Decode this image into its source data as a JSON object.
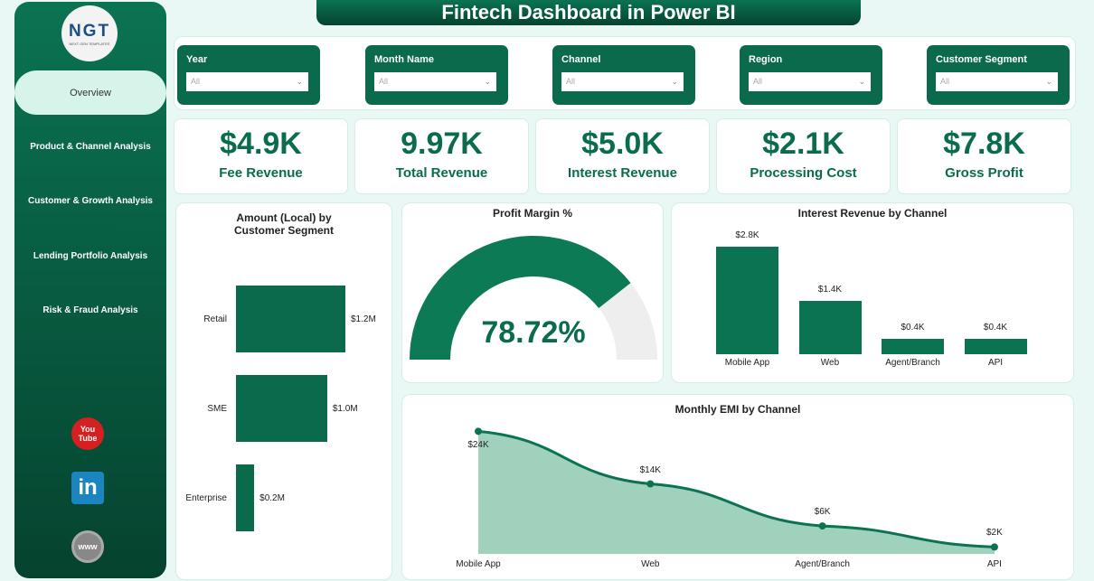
{
  "title": "Fintech Dashboard in Power BI",
  "logo": {
    "text": "NGT",
    "sub": "NEXT GEN TEMPLATES"
  },
  "nav": [
    "Overview",
    "Product & Channel Analysis",
    "Customer & Growth Analysis",
    "Lending Portfolio Analysis",
    "Risk & Fraud Analysis"
  ],
  "social": {
    "youtube": "You Tube",
    "linkedin": "in",
    "web": "www"
  },
  "slicers": [
    {
      "label": "Year",
      "value": "All"
    },
    {
      "label": "Month Name",
      "value": "All"
    },
    {
      "label": "Channel",
      "value": "All"
    },
    {
      "label": "Region",
      "value": "All"
    },
    {
      "label": "Customer Segment",
      "value": "All"
    }
  ],
  "kpis": [
    {
      "value": "$4.9K",
      "label": "Fee Revenue"
    },
    {
      "value": "9.97K",
      "label": "Total Revenue"
    },
    {
      "value": "$5.0K",
      "label": "Interest Revenue"
    },
    {
      "value": "$2.1K",
      "label": "Processing Cost"
    },
    {
      "value": "$7.8K",
      "label": "Gross Profit"
    }
  ],
  "accent": "#0b6b4e",
  "chart_data": [
    {
      "type": "bar",
      "orientation": "horizontal",
      "title": "Amount (Local) by Customer Segment",
      "categories": [
        "Retail",
        "SME",
        "Enterprise"
      ],
      "values": [
        1.2,
        1.0,
        0.2
      ],
      "labels": [
        "$1.2M",
        "$1.0M",
        "$0.2M"
      ]
    },
    {
      "type": "gauge",
      "title": "Profit Margin %",
      "value": 78.72,
      "label": "78.72%",
      "max": 100
    },
    {
      "type": "bar",
      "title": "Interest Revenue by Channel",
      "categories": [
        "Mobile App",
        "Web",
        "Agent/Branch",
        "API"
      ],
      "values": [
        2.8,
        1.4,
        0.4,
        0.4
      ],
      "labels": [
        "$2.8K",
        "$1.4K",
        "$0.4K",
        "$0.4K"
      ]
    },
    {
      "type": "area",
      "title": "Monthly EMI by Channel",
      "categories": [
        "Mobile App",
        "Web",
        "Agent/Branch",
        "API"
      ],
      "values": [
        24,
        14,
        6,
        2
      ],
      "labels": [
        "$24K",
        "$14K",
        "$6K",
        "$2K"
      ]
    }
  ]
}
